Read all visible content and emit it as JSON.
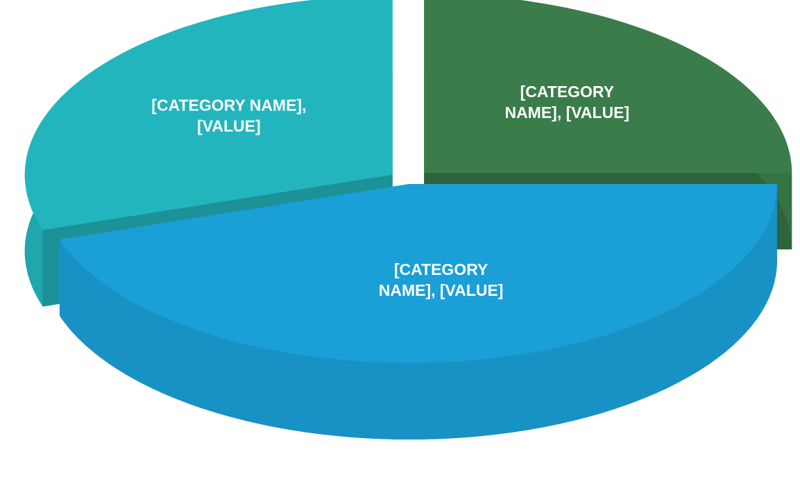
{
  "chart_data": {
    "type": "pie3d",
    "labels": [
      [
        "[CATEGORY",
        "NAME], [VALUE]"
      ],
      [
        "[CATEGORY",
        "NAME], [VALUE]"
      ],
      [
        "[CATEGORY NAME],",
        "[VALUE]"
      ]
    ],
    "values": [
      25,
      45,
      30
    ],
    "colors": [
      "#3a7d4a",
      "#1a9fd6",
      "#23b5bd"
    ],
    "exploded": [
      true,
      false,
      true
    ]
  }
}
